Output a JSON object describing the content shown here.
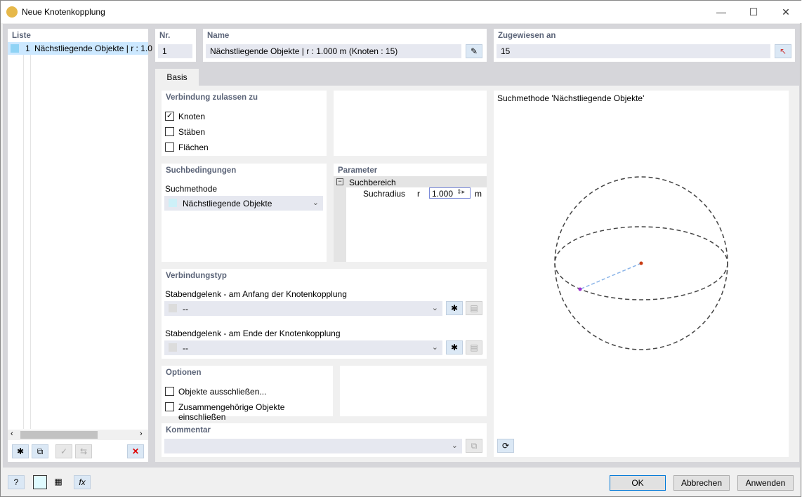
{
  "window": {
    "title": "Neue Knotenkopplung",
    "minimize": "—",
    "maximize": "☐",
    "close": "✕"
  },
  "list": {
    "title": "Liste",
    "items": [
      {
        "nr": "1",
        "label": "Nächstliegende Objekte | r : 1.0",
        "color": "#8fd3f5"
      }
    ]
  },
  "header": {
    "nr_label": "Nr.",
    "nr_value": "1",
    "name_label": "Name",
    "name_value": "Nächstliegende Objekte | r : 1.000 m (Knoten : 15)",
    "assigned_label": "Zugewiesen an",
    "assigned_value": "15"
  },
  "tabs": [
    {
      "label": "Basis"
    }
  ],
  "connection": {
    "title": "Verbindung zulassen zu",
    "options": [
      {
        "label": "Knoten",
        "checked": true
      },
      {
        "label": "Stäben",
        "checked": false
      },
      {
        "label": "Flächen",
        "checked": false
      }
    ]
  },
  "search": {
    "title": "Suchbedingungen",
    "method_label": "Suchmethode",
    "method_value": "Nächstliegende Objekte"
  },
  "parameter": {
    "title": "Parameter",
    "group": "Suchbereich",
    "row_label": "Suchradius",
    "symbol": "r",
    "value": "1.000",
    "unit": "m"
  },
  "conn_type": {
    "title": "Verbindungstyp",
    "start_label": "Stabendgelenk - am Anfang der Knotenkopplung",
    "start_value": "--",
    "end_label": "Stabendgelenk - am Ende der Knotenkopplung",
    "end_value": "--"
  },
  "options": {
    "title": "Optionen",
    "items": [
      {
        "label": "Objekte ausschließen...",
        "checked": false
      },
      {
        "label": "Zusammengehörige Objekte einschließen",
        "checked": false
      }
    ]
  },
  "comment": {
    "title": "Kommentar",
    "value": ""
  },
  "preview": {
    "title": "Suchmethode 'Nächstliegende Objekte'"
  },
  "buttons": {
    "ok": "OK",
    "cancel": "Abbrechen",
    "apply": "Anwenden"
  }
}
